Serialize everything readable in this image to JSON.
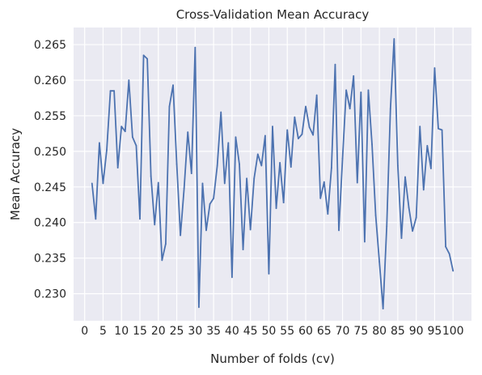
{
  "chart_data": {
    "type": "line",
    "title": "Cross-Validation Mean Accuracy",
    "xlabel": "Number of folds (cv)",
    "ylabel": "Mean Accuracy",
    "xlim": [
      -3,
      105
    ],
    "ylim": [
      0.2262,
      0.2674
    ],
    "grid": true,
    "x_ticks": [
      0,
      5,
      10,
      15,
      20,
      25,
      30,
      35,
      40,
      45,
      50,
      55,
      60,
      65,
      70,
      75,
      80,
      85,
      90,
      95,
      100
    ],
    "x_tick_labels": [
      "0",
      "5",
      "10",
      "15",
      "20",
      "25",
      "30",
      "35",
      "40",
      "45",
      "50",
      "55",
      "60",
      "65",
      "70",
      "75",
      "80",
      "85",
      "90",
      "95",
      "100"
    ],
    "y_ticks": [
      0.23,
      0.235,
      0.24,
      0.245,
      0.25,
      0.255,
      0.26,
      0.265
    ],
    "y_tick_labels": [
      "0.230",
      "0.235",
      "0.240",
      "0.245",
      "0.250",
      "0.255",
      "0.260",
      "0.265"
    ],
    "colors": {
      "line": "#4c72b0",
      "background": "#eaeaf2",
      "grid": "#ffffff"
    },
    "series": [
      {
        "x": [
          2,
          3,
          4,
          5,
          6,
          7,
          8,
          9,
          10,
          11,
          12,
          13,
          14,
          15,
          16,
          17,
          18,
          19,
          20,
          21,
          22,
          23,
          24,
          25,
          26,
          27,
          28,
          29,
          30,
          31,
          32,
          33,
          34,
          35,
          36,
          37,
          38,
          39,
          40,
          41,
          42,
          43,
          44,
          45,
          46,
          47,
          48,
          49,
          50,
          51,
          52,
          53,
          54,
          55,
          56,
          57,
          58,
          59,
          60,
          61,
          62,
          63,
          64,
          65,
          66,
          67,
          68,
          69,
          70,
          71,
          72,
          73,
          74,
          75,
          76,
          77,
          78,
          79,
          80,
          81,
          82,
          83,
          84,
          85,
          86,
          87,
          88,
          89,
          90,
          91,
          92,
          93,
          94,
          95,
          96,
          97,
          98,
          99,
          100
        ],
        "values": [
          0.2455,
          0.2405,
          0.2512,
          0.2455,
          0.2502,
          0.2585,
          0.2585,
          0.2477,
          0.2535,
          0.2528,
          0.26,
          0.252,
          0.2508,
          0.2405,
          0.2635,
          0.263,
          0.2465,
          0.2397,
          0.2456,
          0.2347,
          0.237,
          0.2563,
          0.2593,
          0.2482,
          0.2382,
          0.2448,
          0.2527,
          0.2469,
          0.2646,
          0.2281,
          0.2455,
          0.2389,
          0.2426,
          0.2434,
          0.248,
          0.2555,
          0.2455,
          0.2512,
          0.2323,
          0.252,
          0.2482,
          0.2362,
          0.2462,
          0.239,
          0.2462,
          0.2496,
          0.248,
          0.2522,
          0.2328,
          0.2535,
          0.242,
          0.2484,
          0.2428,
          0.253,
          0.2478,
          0.2548,
          0.2518,
          0.2524,
          0.2563,
          0.2534,
          0.2523,
          0.2579,
          0.2434,
          0.2457,
          0.2412,
          0.2477,
          0.2622,
          0.2389,
          0.249,
          0.2586,
          0.256,
          0.2606,
          0.2456,
          0.2583,
          0.2373,
          0.2586,
          0.251,
          0.241,
          0.2345,
          0.2279,
          0.2395,
          0.256,
          0.2658,
          0.248,
          0.2378,
          0.2464,
          0.2421,
          0.2388,
          0.2407,
          0.2535,
          0.2446,
          0.2508,
          0.2476,
          0.2617,
          0.2532,
          0.253,
          0.2366,
          0.2356,
          0.2332
        ]
      }
    ]
  }
}
